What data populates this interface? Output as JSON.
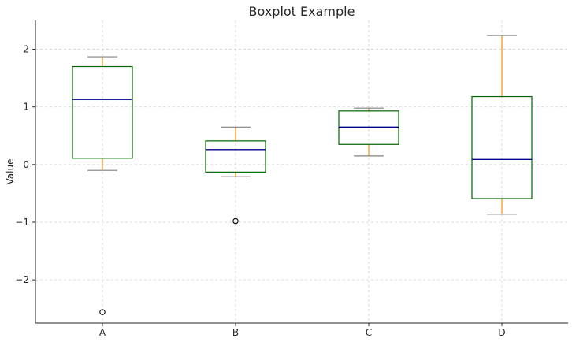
{
  "chart_data": {
    "type": "box",
    "title": "Boxplot Example",
    "xlabel": "",
    "ylabel": "Value",
    "ylim": [
      -2.75,
      2.5
    ],
    "yticks": [
      -2,
      -1,
      0,
      1,
      2
    ],
    "ytick_labels": [
      "−2",
      "−1",
      "0",
      "1",
      "2"
    ],
    "categories": [
      "A",
      "B",
      "C",
      "D"
    ],
    "boxes": [
      {
        "category": "A",
        "whisker_low": -0.1,
        "q1": 0.11,
        "median": 1.13,
        "q3": 1.7,
        "whisker_high": 1.87,
        "outliers": [
          -2.56
        ]
      },
      {
        "category": "B",
        "whisker_low": -0.21,
        "q1": -0.13,
        "median": 0.26,
        "q3": 0.41,
        "whisker_high": 0.65,
        "outliers": [
          -0.98
        ]
      },
      {
        "category": "C",
        "whisker_low": 0.15,
        "q1": 0.35,
        "median": 0.65,
        "q3": 0.93,
        "whisker_high": 0.98,
        "outliers": []
      },
      {
        "category": "D",
        "whisker_low": -0.86,
        "q1": -0.59,
        "median": 0.09,
        "q3": 1.18,
        "whisker_high": 2.24,
        "outliers": []
      }
    ],
    "grid": true,
    "colors": {
      "box": "#006400",
      "median": "#00008b",
      "whisker": "#ff8c00",
      "cap": "#808080",
      "flier": "#000000",
      "grid": "#cfcfcf",
      "axis": "#262626"
    }
  }
}
